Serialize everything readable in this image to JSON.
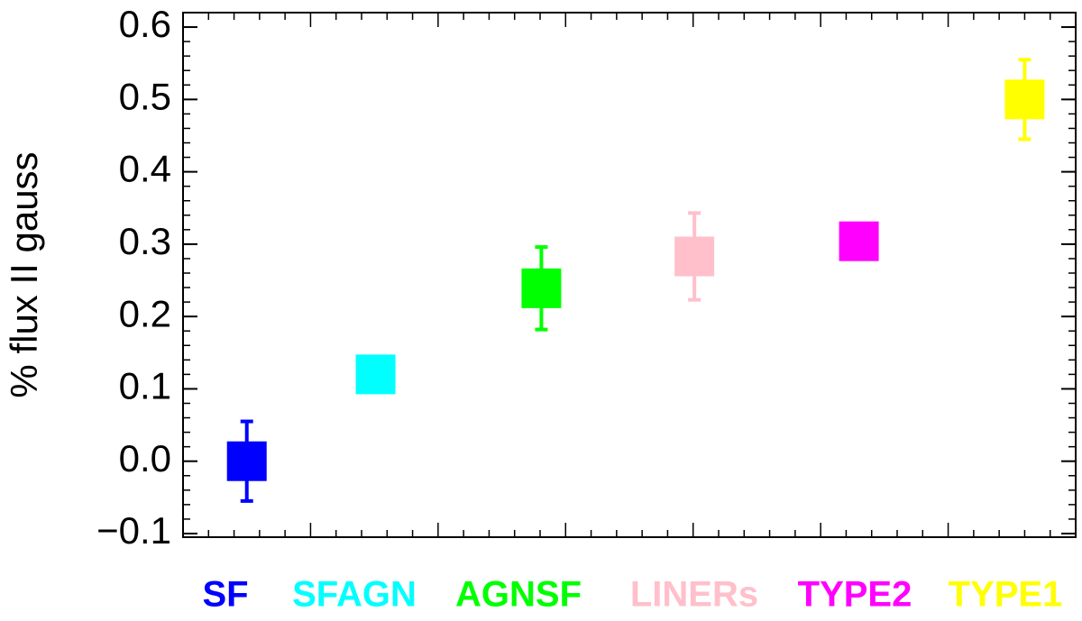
{
  "chart_data": {
    "type": "errorbar",
    "ylabel": "% flux II gauss",
    "categories": [
      "SF",
      "SFAGN",
      "AGNSF",
      "LINERs",
      "TYPE2",
      "TYPE1"
    ],
    "colors": [
      "#0000ff",
      "#00ffff",
      "#00ff00",
      "#ffc0cb",
      "#ff00ff",
      "#ffff00"
    ],
    "x": [
      0.5,
      1.51,
      2.81,
      4.01,
      5.3,
      6.6
    ],
    "values": [
      0.0,
      0.12,
      0.239,
      0.283,
      0.304,
      0.5
    ],
    "errors": [
      0.055,
      0.02,
      0.057,
      0.06,
      0.02,
      0.055
    ],
    "xlim": [
      0,
      7
    ],
    "ylim": [
      -0.105,
      0.62
    ],
    "yticks": [
      {
        "value": -0.1,
        "label": "−0.1"
      },
      {
        "value": 0,
        "label": "0.0"
      },
      0.1,
      0.2,
      0.3,
      0.4,
      0.5,
      0.6
    ]
  }
}
